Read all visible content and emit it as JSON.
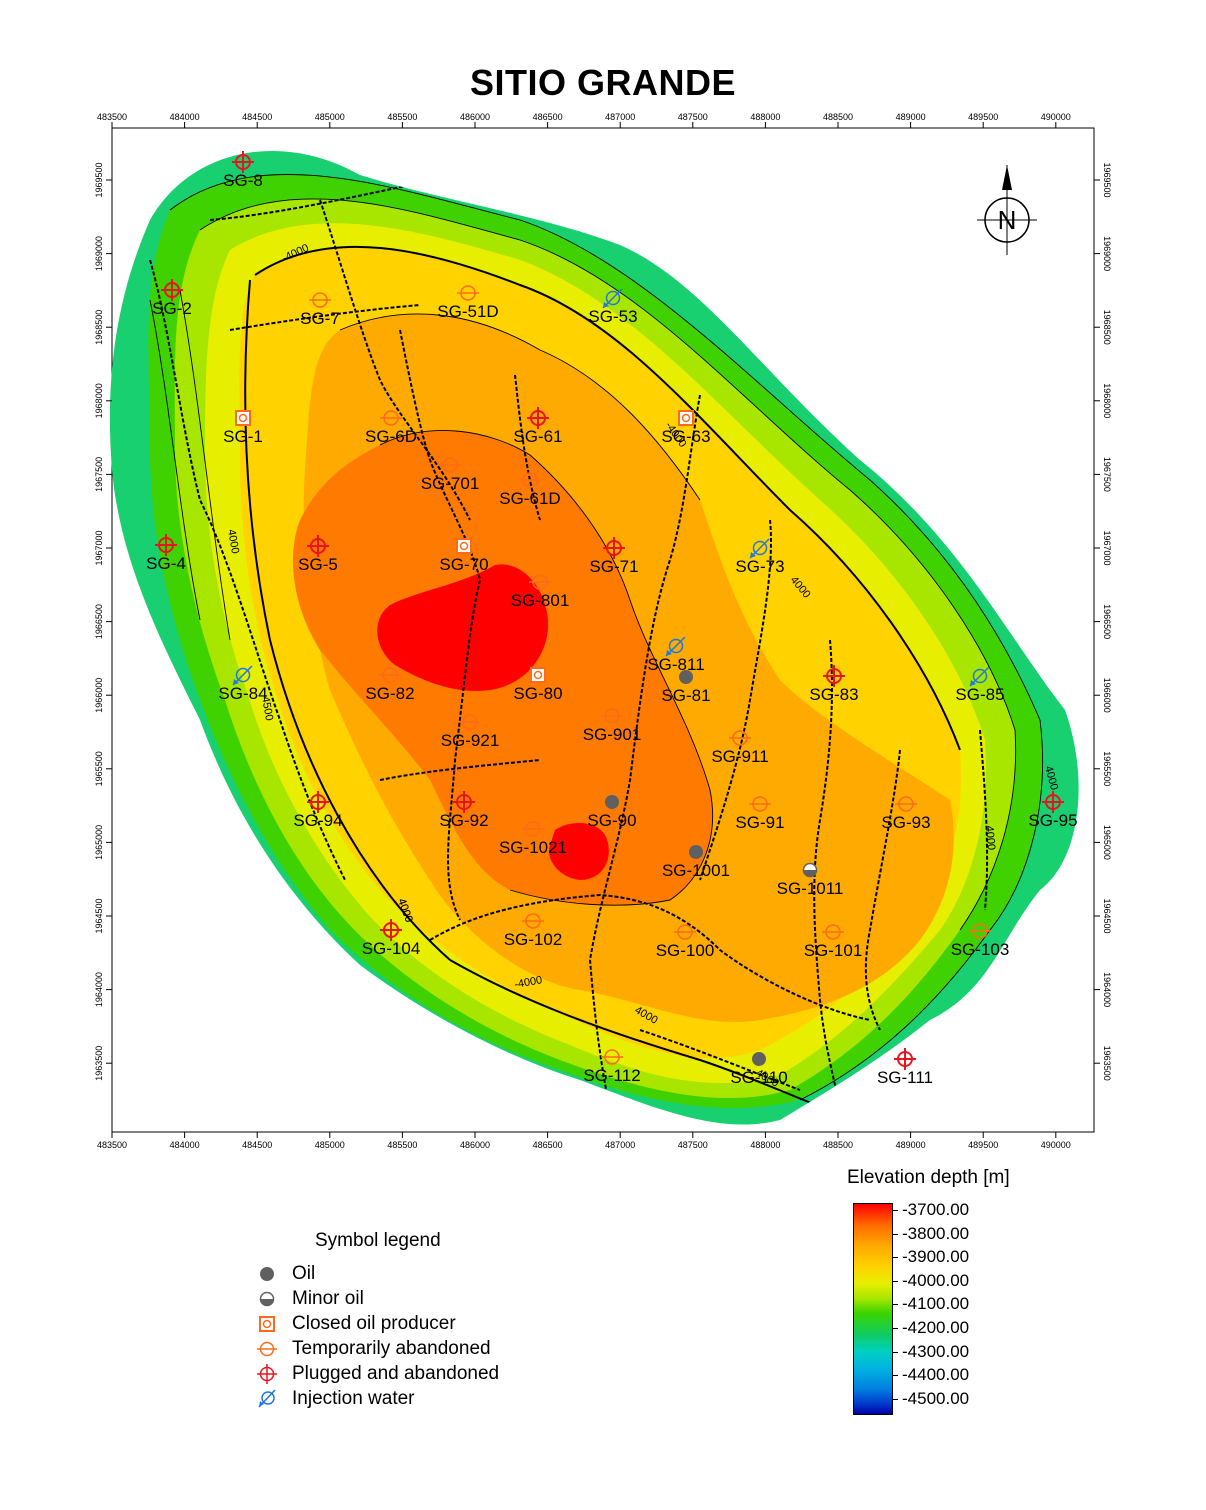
{
  "title": "SITIO GRANDE",
  "axes": {
    "x_ticks": [
      "483500",
      "484000",
      "484500",
      "485000",
      "485500",
      "486000",
      "486500",
      "487000",
      "487500",
      "488000",
      "488500",
      "489000",
      "489500",
      "490000"
    ],
    "y_ticks": [
      "1969500",
      "1969000",
      "1968500",
      "1968000",
      "1967500",
      "1967000",
      "1966500",
      "1966000",
      "1965500",
      "1965000",
      "1964500",
      "1964000",
      "1963500"
    ]
  },
  "north_arrow": {
    "icon": "north-arrow-icon",
    "letter": "N"
  },
  "contour_labels": [
    "-4000",
    "4000",
    "4000",
    "-4000",
    "4000",
    "4000",
    "-4000",
    "4000",
    "4000",
    "4000",
    "4500",
    "4000"
  ],
  "wells": [
    {
      "name": "SG-8",
      "status": "plugged"
    },
    {
      "name": "SG-2",
      "status": "plugged"
    },
    {
      "name": "SG-7",
      "status": "temporarily"
    },
    {
      "name": "SG-51D",
      "status": "temporarily"
    },
    {
      "name": "SG-53",
      "status": "injection"
    },
    {
      "name": "SG-1",
      "status": "closed"
    },
    {
      "name": "SG-6D",
      "status": "temporarily"
    },
    {
      "name": "SG-61",
      "status": "plugged"
    },
    {
      "name": "SG-63",
      "status": "closed"
    },
    {
      "name": "SG-701",
      "status": "temporarily"
    },
    {
      "name": "SG-61D",
      "status": "temporarily"
    },
    {
      "name": "SG-4",
      "status": "plugged"
    },
    {
      "name": "SG-5",
      "status": "plugged"
    },
    {
      "name": "SG-70",
      "status": "closed"
    },
    {
      "name": "SG-71",
      "status": "plugged"
    },
    {
      "name": "SG-73",
      "status": "injection"
    },
    {
      "name": "SG-801",
      "status": "temporarily"
    },
    {
      "name": "SG-811",
      "status": "injection"
    },
    {
      "name": "SG-84",
      "status": "injection"
    },
    {
      "name": "SG-82",
      "status": "temporarily"
    },
    {
      "name": "SG-80",
      "status": "closed"
    },
    {
      "name": "SG-81",
      "status": "oil"
    },
    {
      "name": "SG-83",
      "status": "plugged"
    },
    {
      "name": "SG-85",
      "status": "injection"
    },
    {
      "name": "SG-921",
      "status": "temporarily"
    },
    {
      "name": "SG-901",
      "status": "temporarily"
    },
    {
      "name": "SG-911",
      "status": "temporarily"
    },
    {
      "name": "SG-94",
      "status": "plugged"
    },
    {
      "name": "SG-92",
      "status": "plugged"
    },
    {
      "name": "SG-90",
      "status": "oil"
    },
    {
      "name": "SG-91",
      "status": "temporarily"
    },
    {
      "name": "SG-93",
      "status": "temporarily"
    },
    {
      "name": "SG-95",
      "status": "plugged"
    },
    {
      "name": "SG-1021",
      "status": "temporarily"
    },
    {
      "name": "SG-1001",
      "status": "oil"
    },
    {
      "name": "SG-1011",
      "status": "minor"
    },
    {
      "name": "SG-104",
      "status": "plugged"
    },
    {
      "name": "SG-102",
      "status": "temporarily"
    },
    {
      "name": "SG-100",
      "status": "temporarily"
    },
    {
      "name": "SG-101",
      "status": "temporarily"
    },
    {
      "name": "SG-103",
      "status": "temporarily"
    },
    {
      "name": "SG-112",
      "status": "temporarily"
    },
    {
      "name": "SG-110",
      "status": "oil"
    },
    {
      "name": "SG-111",
      "status": "plugged"
    }
  ],
  "symbol_legend": {
    "title": "Symbol legend",
    "items": [
      {
        "label": "Oil",
        "icon": "oil-well-icon"
      },
      {
        "label": "Minor oil",
        "icon": "minor-oil-icon"
      },
      {
        "label": "Closed oil producer",
        "icon": "closed-producer-icon"
      },
      {
        "label": "Temporarily abandoned",
        "icon": "temporarily-abandoned-icon"
      },
      {
        "label": "Plugged and abandoned",
        "icon": "plugged-abandoned-icon"
      },
      {
        "label": "Injection water",
        "icon": "injection-water-icon"
      }
    ]
  },
  "colorbar": {
    "title": "Elevation depth [m]",
    "labels": [
      "-3700.00",
      "-3800.00",
      "-3900.00",
      "-4000.00",
      "-4100.00",
      "-4200.00",
      "-4300.00",
      "-4400.00",
      "-4500.00"
    ]
  },
  "colors": {
    "oil": "#606060",
    "plugged": "#e8141e",
    "temporarily": "#ff6a1a",
    "injection": "#1e78e0",
    "closed": "#ff6a1a"
  }
}
